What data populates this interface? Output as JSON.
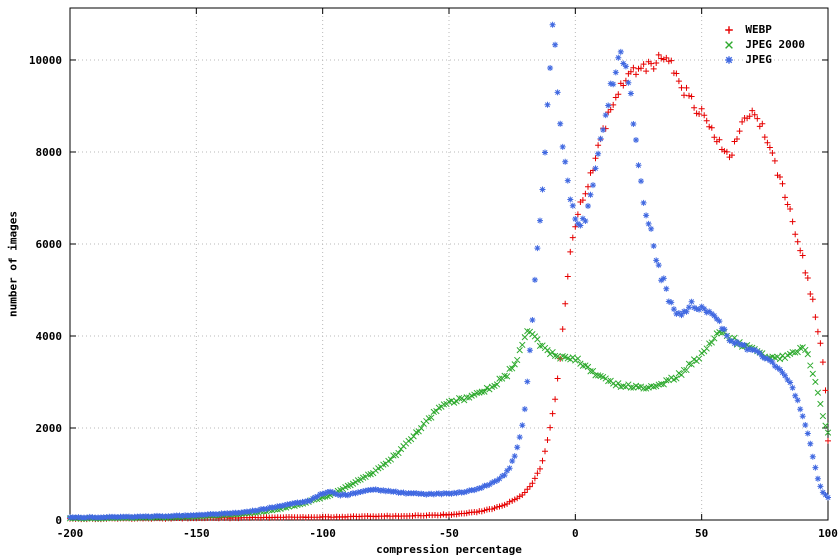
{
  "page": {
    "background": "#ffffff"
  },
  "chart_data": {
    "type": "scatter",
    "title": "",
    "xlabel": "compression percentage",
    "ylabel": "number of images",
    "xlim": [
      -200,
      100
    ],
    "ylim": [
      0,
      11130
    ],
    "xticks": [
      -200,
      -150,
      -100,
      -50,
      0,
      50,
      100
    ],
    "yticks": [
      0,
      2000,
      4000,
      6000,
      8000,
      10000
    ],
    "grid": "dotted",
    "grid_color": "#b9b9b9",
    "legend_position": "top-right",
    "series": [
      {
        "name": "WEBP",
        "marker": "plus",
        "color": "#e60000",
        "points": [
          [
            -200,
            25
          ],
          [
            -180,
            30
          ],
          [
            -160,
            35
          ],
          [
            -150,
            40
          ],
          [
            -140,
            45
          ],
          [
            -120,
            55
          ],
          [
            -100,
            65
          ],
          [
            -80,
            80
          ],
          [
            -70,
            90
          ],
          [
            -60,
            100
          ],
          [
            -50,
            115
          ],
          [
            -45,
            135
          ],
          [
            -40,
            165
          ],
          [
            -35,
            215
          ],
          [
            -30,
            290
          ],
          [
            -25,
            410
          ],
          [
            -20,
            590
          ],
          [
            -18,
            720
          ],
          [
            -16,
            890
          ],
          [
            -14,
            1120
          ],
          [
            -12,
            1480
          ],
          [
            -10,
            1980
          ],
          [
            -8,
            2600
          ],
          [
            -6,
            3550
          ],
          [
            -5,
            4150
          ],
          [
            -4,
            4700
          ],
          [
            -3,
            5250
          ],
          [
            -2,
            5750
          ],
          [
            -1,
            6150
          ],
          [
            0,
            6400
          ],
          [
            2,
            6850
          ],
          [
            4,
            7150
          ],
          [
            6,
            7450
          ],
          [
            8,
            7850
          ],
          [
            10,
            8300
          ],
          [
            12,
            8600
          ],
          [
            14,
            8900
          ],
          [
            16,
            9150
          ],
          [
            18,
            9400
          ],
          [
            20,
            9600
          ],
          [
            22,
            9700
          ],
          [
            24,
            9800
          ],
          [
            26,
            9900
          ],
          [
            28,
            9830
          ],
          [
            30,
            9900
          ],
          [
            32,
            9960
          ],
          [
            34,
            10000
          ],
          [
            36,
            9930
          ],
          [
            38,
            9880
          ],
          [
            40,
            9600
          ],
          [
            42,
            9420
          ],
          [
            44,
            9300
          ],
          [
            46,
            9120
          ],
          [
            48,
            8950
          ],
          [
            50,
            8850
          ],
          [
            52,
            8700
          ],
          [
            54,
            8500
          ],
          [
            56,
            8300
          ],
          [
            58,
            8100
          ],
          [
            60,
            7920
          ],
          [
            62,
            8020
          ],
          [
            64,
            8300
          ],
          [
            66,
            8550
          ],
          [
            68,
            8750
          ],
          [
            70,
            8820
          ],
          [
            72,
            8700
          ],
          [
            74,
            8500
          ],
          [
            76,
            8200
          ],
          [
            78,
            7900
          ],
          [
            80,
            7580
          ],
          [
            82,
            7220
          ],
          [
            84,
            6880
          ],
          [
            86,
            6500
          ],
          [
            88,
            6080
          ],
          [
            90,
            5680
          ],
          [
            92,
            5200
          ],
          [
            94,
            4750
          ],
          [
            96,
            4150
          ],
          [
            97,
            3880
          ],
          [
            98,
            3480
          ],
          [
            99,
            2800
          ],
          [
            100,
            1720
          ]
        ]
      },
      {
        "name": "JPEG 2000",
        "marker": "cross",
        "color": "#2eaa2e",
        "points": [
          [
            -200,
            35
          ],
          [
            -180,
            45
          ],
          [
            -160,
            60
          ],
          [
            -150,
            80
          ],
          [
            -140,
            105
          ],
          [
            -130,
            145
          ],
          [
            -120,
            210
          ],
          [
            -110,
            330
          ],
          [
            -100,
            490
          ],
          [
            -95,
            590
          ],
          [
            -90,
            730
          ],
          [
            -85,
            880
          ],
          [
            -80,
            1040
          ],
          [
            -75,
            1230
          ],
          [
            -70,
            1480
          ],
          [
            -65,
            1780
          ],
          [
            -60,
            2080
          ],
          [
            -55,
            2380
          ],
          [
            -52,
            2480
          ],
          [
            -50,
            2540
          ],
          [
            -46,
            2610
          ],
          [
            -42,
            2680
          ],
          [
            -38,
            2760
          ],
          [
            -34,
            2870
          ],
          [
            -30,
            3030
          ],
          [
            -27,
            3170
          ],
          [
            -24,
            3380
          ],
          [
            -22,
            3650
          ],
          [
            -20,
            3980
          ],
          [
            -19,
            4080
          ],
          [
            -18,
            4040
          ],
          [
            -16,
            3940
          ],
          [
            -14,
            3840
          ],
          [
            -12,
            3740
          ],
          [
            -10,
            3650
          ],
          [
            -8,
            3590
          ],
          [
            -6,
            3540
          ],
          [
            -4,
            3510
          ],
          [
            -2,
            3500
          ],
          [
            0,
            3490
          ],
          [
            2,
            3430
          ],
          [
            4,
            3340
          ],
          [
            6,
            3240
          ],
          [
            8,
            3150
          ],
          [
            10,
            3090
          ],
          [
            12,
            3040
          ],
          [
            14,
            2990
          ],
          [
            16,
            2950
          ],
          [
            18,
            2930
          ],
          [
            20,
            2910
          ],
          [
            24,
            2890
          ],
          [
            28,
            2860
          ],
          [
            30,
            2890
          ],
          [
            32,
            2910
          ],
          [
            34,
            2950
          ],
          [
            36,
            3000
          ],
          [
            38,
            3050
          ],
          [
            40,
            3110
          ],
          [
            42,
            3200
          ],
          [
            44,
            3300
          ],
          [
            46,
            3400
          ],
          [
            48,
            3500
          ],
          [
            50,
            3610
          ],
          [
            52,
            3750
          ],
          [
            54,
            3890
          ],
          [
            56,
            4000
          ],
          [
            58,
            4090
          ],
          [
            60,
            4040
          ],
          [
            62,
            3950
          ],
          [
            64,
            3860
          ],
          [
            66,
            3800
          ],
          [
            68,
            3750
          ],
          [
            70,
            3700
          ],
          [
            72,
            3650
          ],
          [
            74,
            3610
          ],
          [
            76,
            3560
          ],
          [
            78,
            3520
          ],
          [
            80,
            3500
          ],
          [
            82,
            3540
          ],
          [
            84,
            3590
          ],
          [
            86,
            3640
          ],
          [
            88,
            3690
          ],
          [
            90,
            3740
          ],
          [
            92,
            3590
          ],
          [
            94,
            3180
          ],
          [
            96,
            2780
          ],
          [
            97,
            2500
          ],
          [
            98,
            2230
          ],
          [
            99,
            2040
          ],
          [
            100,
            1900
          ]
        ]
      },
      {
        "name": "JPEG",
        "marker": "asterisk",
        "color": "#4169e1",
        "points": [
          [
            -200,
            55
          ],
          [
            -180,
            65
          ],
          [
            -160,
            85
          ],
          [
            -150,
            105
          ],
          [
            -140,
            135
          ],
          [
            -130,
            175
          ],
          [
            -120,
            270
          ],
          [
            -115,
            320
          ],
          [
            -110,
            370
          ],
          [
            -105,
            420
          ],
          [
            -100,
            580
          ],
          [
            -97,
            620
          ],
          [
            -94,
            540
          ],
          [
            -90,
            550
          ],
          [
            -85,
            610
          ],
          [
            -80,
            670
          ],
          [
            -75,
            630
          ],
          [
            -70,
            600
          ],
          [
            -65,
            580
          ],
          [
            -60,
            560
          ],
          [
            -55,
            560
          ],
          [
            -50,
            580
          ],
          [
            -45,
            600
          ],
          [
            -40,
            650
          ],
          [
            -35,
            750
          ],
          [
            -30,
            890
          ],
          [
            -28,
            990
          ],
          [
            -26,
            1140
          ],
          [
            -24,
            1390
          ],
          [
            -22,
            1780
          ],
          [
            -20,
            2380
          ],
          [
            -19,
            2980
          ],
          [
            -18,
            3680
          ],
          [
            -17,
            4380
          ],
          [
            -16,
            5180
          ],
          [
            -15,
            5980
          ],
          [
            -14,
            6580
          ],
          [
            -13,
            7280
          ],
          [
            -12,
            8080
          ],
          [
            -11,
            8980
          ],
          [
            -10,
            9780
          ],
          [
            -9,
            10780
          ],
          [
            -8,
            10280
          ],
          [
            -7,
            9380
          ],
          [
            -6,
            8580
          ],
          [
            -5,
            8180
          ],
          [
            -4,
            7780
          ],
          [
            -3,
            7280
          ],
          [
            -2,
            6980
          ],
          [
            -1,
            6780
          ],
          [
            0,
            6480
          ],
          [
            2,
            6380
          ],
          [
            4,
            6580
          ],
          [
            6,
            6980
          ],
          [
            8,
            7580
          ],
          [
            10,
            8180
          ],
          [
            12,
            8780
          ],
          [
            14,
            9380
          ],
          [
            16,
            9780
          ],
          [
            18,
            10080
          ],
          [
            19,
            10050
          ],
          [
            20,
            9980
          ],
          [
            21,
            9580
          ],
          [
            22,
            9180
          ],
          [
            23,
            8680
          ],
          [
            24,
            8180
          ],
          [
            25,
            7780
          ],
          [
            26,
            7380
          ],
          [
            27,
            6980
          ],
          [
            28,
            6680
          ],
          [
            29,
            6480
          ],
          [
            30,
            6280
          ],
          [
            31,
            5980
          ],
          [
            32,
            5680
          ],
          [
            33,
            5480
          ],
          [
            34,
            5280
          ],
          [
            35,
            5180
          ],
          [
            36,
            4980
          ],
          [
            37,
            4780
          ],
          [
            38,
            4680
          ],
          [
            39,
            4580
          ],
          [
            40,
            4540
          ],
          [
            42,
            4490
          ],
          [
            44,
            4580
          ],
          [
            46,
            4680
          ],
          [
            48,
            4640
          ],
          [
            50,
            4590
          ],
          [
            52,
            4540
          ],
          [
            54,
            4490
          ],
          [
            56,
            4390
          ],
          [
            58,
            4190
          ],
          [
            60,
            3990
          ],
          [
            62,
            3890
          ],
          [
            64,
            3840
          ],
          [
            66,
            3790
          ],
          [
            68,
            3740
          ],
          [
            70,
            3690
          ],
          [
            72,
            3640
          ],
          [
            74,
            3590
          ],
          [
            76,
            3490
          ],
          [
            78,
            3390
          ],
          [
            80,
            3290
          ],
          [
            82,
            3190
          ],
          [
            84,
            3090
          ],
          [
            86,
            2890
          ],
          [
            88,
            2590
          ],
          [
            90,
            2290
          ],
          [
            92,
            1890
          ],
          [
            94,
            1390
          ],
          [
            96,
            890
          ],
          [
            98,
            590
          ],
          [
            100,
            490
          ]
        ]
      }
    ]
  }
}
